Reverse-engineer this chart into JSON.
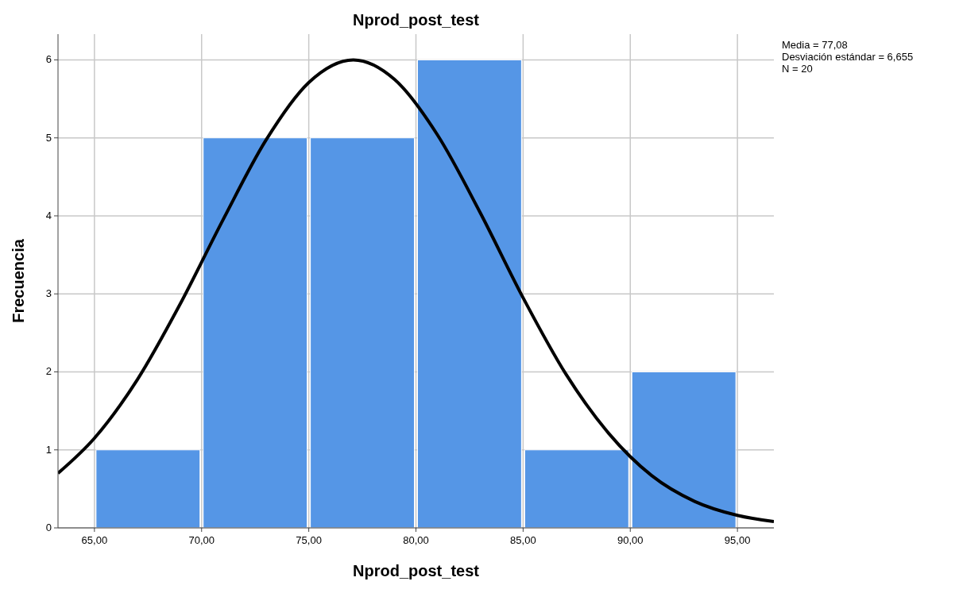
{
  "chart_data": {
    "type": "histogram",
    "title": "Nprod_post_test",
    "xlabel": "Nprod_post_test",
    "ylabel": "Frecuencia",
    "bins": [
      65,
      70,
      75,
      80,
      85,
      90,
      95
    ],
    "values": [
      1,
      5,
      5,
      6,
      1,
      2
    ],
    "color": "#5596e6",
    "series": [
      {
        "type": "line",
        "color": "#000000",
        "x": [
          63.3,
          65,
          67,
          69,
          71,
          73,
          75,
          77.08,
          79,
          81,
          83,
          85,
          87,
          89,
          91,
          93,
          95,
          96.7
        ],
        "values": [
          0.7,
          1.15,
          1.9,
          2.87,
          3.95,
          4.97,
          5.71,
          6,
          5.75,
          5.04,
          4.04,
          2.95,
          1.97,
          1.21,
          0.67,
          0.34,
          0.16,
          0.08
        ]
      }
    ],
    "xlim": [
      63.3,
      96.7
    ],
    "ylim": [
      0,
      6.33
    ],
    "xticks": [
      {
        "value": 65,
        "label": "65,00"
      },
      {
        "value": 70,
        "label": "70,00"
      },
      {
        "value": 75,
        "label": "75,00"
      },
      {
        "value": 80,
        "label": "80,00"
      },
      {
        "value": 85,
        "label": "85,00"
      },
      {
        "value": 90,
        "label": "90,00"
      },
      {
        "value": 95,
        "label": "95,00"
      }
    ],
    "yticks": [
      0,
      1,
      2,
      3,
      4,
      5,
      6
    ],
    "grid": true,
    "marker": "none",
    "line_style": "solid",
    "annotations": [
      "Media = 77,08",
      "Desviación estándar = 6,655",
      "N = 20"
    ]
  }
}
